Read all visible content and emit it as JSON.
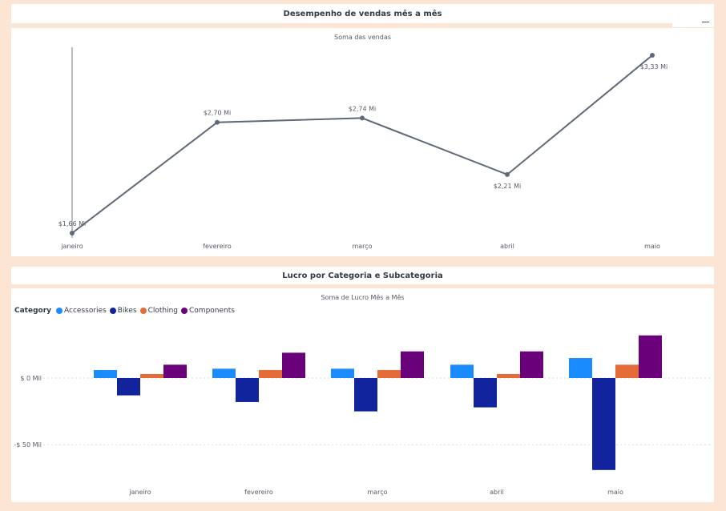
{
  "top_panel": {
    "title": "Desempenho de vendas mês a mês"
  },
  "bottom_panel": {
    "title": "Lucro por Categoria e Subcategoria"
  },
  "colors": {
    "line": "#5f6878",
    "Accessories": "#1a8cff",
    "Bikes": "#12239e",
    "Clothing": "#e66c37",
    "Components": "#6b007b"
  },
  "chart_data": [
    {
      "type": "line",
      "title": "Soma das vendas",
      "categories": [
        "janeiro",
        "fevereiro",
        "março",
        "abril",
        "maio"
      ],
      "values": [
        1.66,
        2.7,
        2.74,
        2.21,
        3.33
      ],
      "data_labels": [
        "$1,66 Mi",
        "$2,70 Mi",
        "$2,74 Mi",
        "$2,21 Mi",
        "$3,33 Mi"
      ],
      "ylim": [
        1.66,
        3.33
      ],
      "grid": false
    },
    {
      "type": "bar",
      "title": "Soma de Lucro Mês a Mês",
      "legend_title": "Category",
      "legend_position": "top-left",
      "categories": [
        "janeiro",
        "fevereiro",
        "março",
        "abril",
        "maio"
      ],
      "series": [
        {
          "name": "Accessories",
          "values": [
            6,
            7,
            7,
            10,
            15
          ]
        },
        {
          "name": "Bikes",
          "values": [
            -13,
            -18,
            -25,
            -22,
            -69
          ]
        },
        {
          "name": "Clothing",
          "values": [
            3,
            6,
            6,
            3,
            10
          ]
        },
        {
          "name": "Components",
          "values": [
            10,
            19,
            20,
            20,
            32
          ]
        }
      ],
      "yticks": [
        {
          "value": 0,
          "label": "$ 0 Mil"
        },
        {
          "value": -50,
          "label": "-$ 50 Mil"
        }
      ],
      "ylim": [
        -72,
        35
      ],
      "grid": true
    }
  ]
}
